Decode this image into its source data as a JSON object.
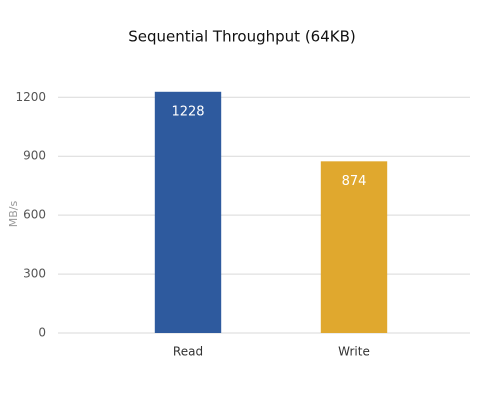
{
  "chart_data": {
    "type": "bar",
    "title": "Sequential Throughput (64KB)",
    "y_label": "MB/s",
    "categories": [
      "Read",
      "Write"
    ],
    "values": [
      1228,
      874
    ],
    "colors": [
      "#2e5a9e",
      "#e0a82e"
    ],
    "ylim": [
      0,
      1400
    ],
    "yticks": [
      0,
      300,
      600,
      900,
      1200
    ],
    "grid": true
  }
}
